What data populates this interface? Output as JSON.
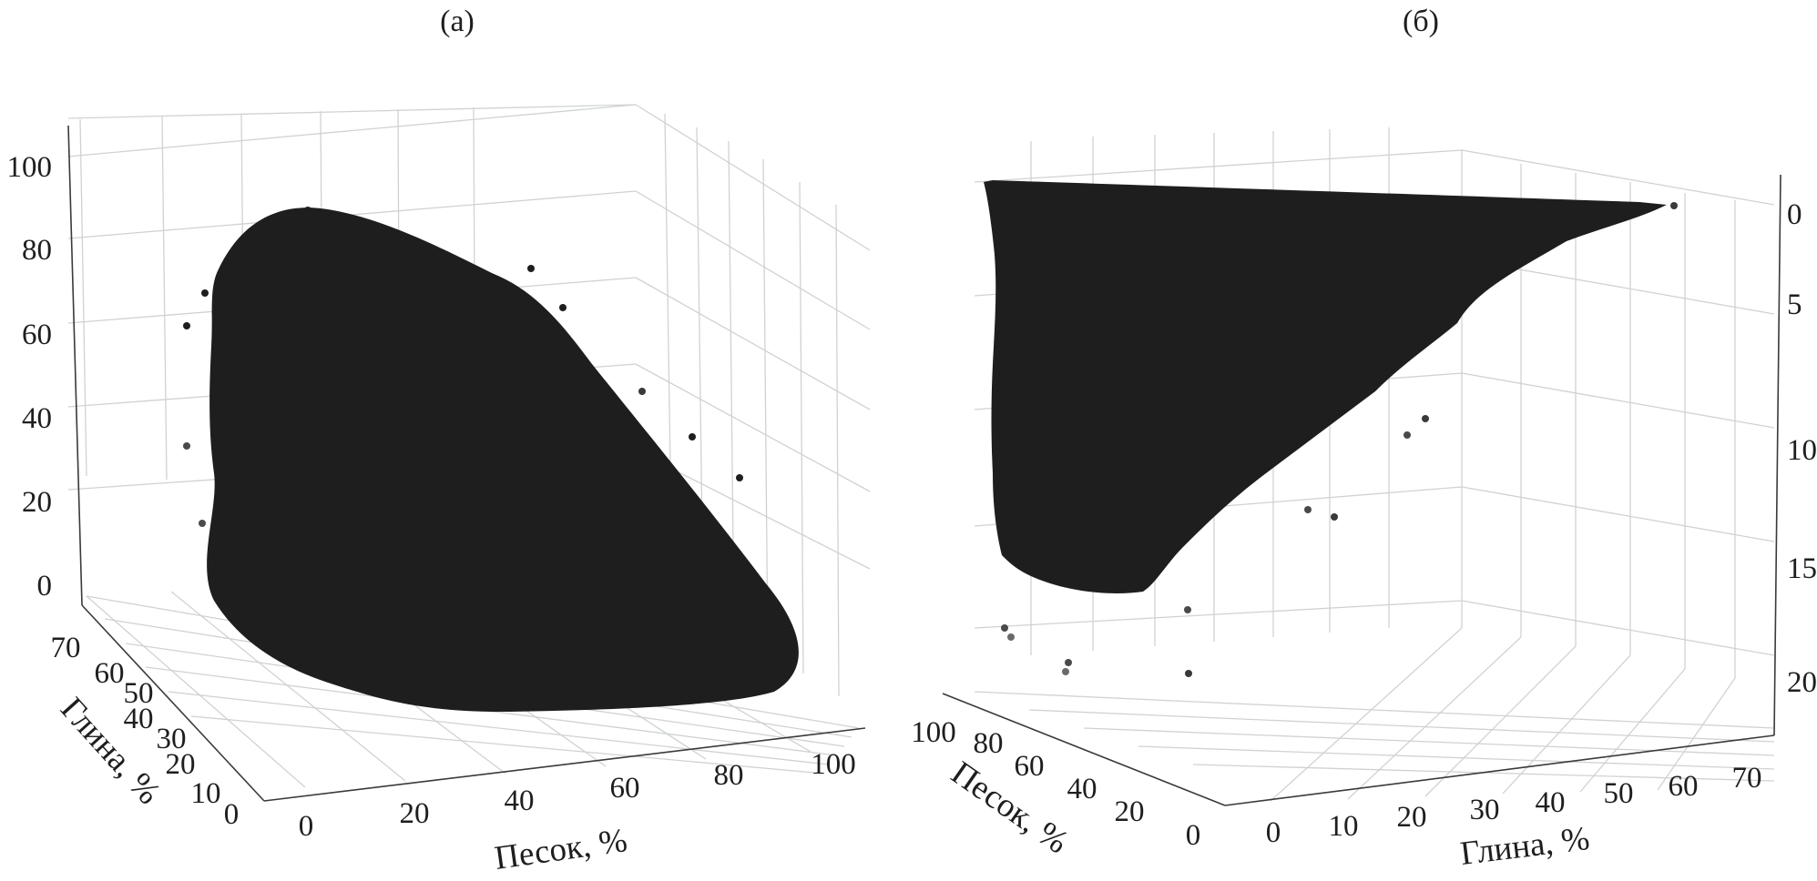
{
  "panels": [
    {
      "title": "(а)",
      "z_ticks": [
        "100",
        "80",
        "60",
        "40",
        "20",
        "0"
      ],
      "x_ticks": [
        "0",
        "20",
        "40",
        "60",
        "80",
        "100"
      ],
      "y_ticks": [
        "70",
        "60",
        "50",
        "40",
        "30",
        "20",
        "10",
        "0"
      ],
      "x_label": "Песок, %",
      "y_label": "Глина, %"
    },
    {
      "title": "(б)",
      "z_ticks": [
        "0",
        "5",
        "10",
        "15",
        "20"
      ],
      "x_ticks": [
        "0",
        "10",
        "20",
        "30",
        "40",
        "50",
        "60",
        "70"
      ],
      "y_ticks": [
        "100",
        "80",
        "60",
        "40",
        "20",
        "0"
      ],
      "x_label": "Глина, %",
      "y_label": "Песок, %"
    }
  ],
  "chart_data": [
    {
      "type": "scatter",
      "projection": "3d",
      "title": "(а)",
      "xlabel": "Песок, %",
      "ylabel": "Глина, %",
      "zlabel": "",
      "xlim": [
        0,
        100
      ],
      "ylim": [
        0,
        75
      ],
      "zlim": [
        0,
        100
      ],
      "marker_color": "#1e1e1e",
      "grid": true,
      "cloud_outline": {
        "x": [
          0,
          2,
          10,
          40,
          50,
          60,
          75,
          95,
          98,
          92,
          50,
          35,
          20,
          10,
          2,
          0
        ],
        "y": [
          70,
          65,
          50,
          40,
          30,
          20,
          10,
          2,
          0,
          0,
          0,
          2,
          12,
          28,
          45,
          60
        ],
        "z": [
          5,
          60,
          70,
          30,
          30,
          40,
          25,
          5,
          0,
          0,
          0,
          2,
          8,
          20,
          10,
          5
        ]
      },
      "outliers": [
        {
          "x": 5,
          "y": 60,
          "z": 85
        },
        {
          "x": 12,
          "y": 50,
          "z": 82
        },
        {
          "x": 30,
          "y": 45,
          "z": 75
        },
        {
          "x": 55,
          "y": 25,
          "z": 55
        },
        {
          "x": 70,
          "y": 15,
          "z": 45
        },
        {
          "x": 85,
          "y": 8,
          "z": 25
        },
        {
          "x": 0,
          "y": 70,
          "z": 45
        }
      ]
    },
    {
      "type": "scatter",
      "projection": "3d",
      "title": "(б)",
      "xlabel": "Глина, %",
      "ylabel": "Песок, %",
      "zlabel": "",
      "xlim": [
        0,
        75
      ],
      "ylim": [
        0,
        100
      ],
      "zlim": [
        0,
        22
      ],
      "z_inverted": true,
      "marker_color": "#1e1e1e",
      "grid": true,
      "cloud_outline": {
        "x": [
          0,
          72,
          45,
          38,
          25,
          15,
          5,
          0
        ],
        "y": [
          100,
          0,
          20,
          28,
          40,
          60,
          80,
          100
        ],
        "z": [
          0,
          0,
          6,
          10,
          12,
          14,
          16,
          15
        ]
      },
      "outliers": [
        {
          "x": 73,
          "y": 0,
          "z": 0
        },
        {
          "x": 40,
          "y": 20,
          "z": 10
        },
        {
          "x": 30,
          "y": 30,
          "z": 13
        },
        {
          "x": 20,
          "y": 55,
          "z": 18
        },
        {
          "x": 5,
          "y": 90,
          "z": 19
        }
      ]
    }
  ]
}
